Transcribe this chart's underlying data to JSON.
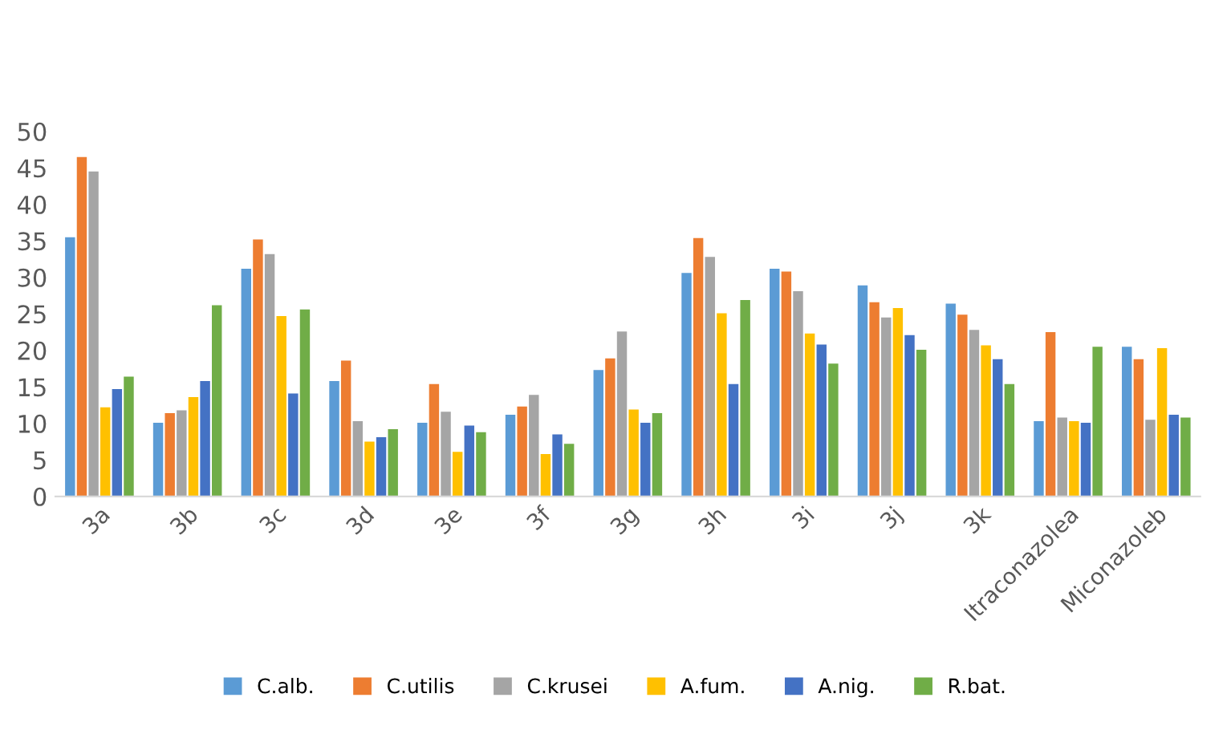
{
  "chart_data": {
    "type": "bar",
    "categories": [
      "3a",
      "3b",
      "3c",
      "3d",
      "3e",
      "3f",
      "3g",
      "3h",
      "3i",
      "3j",
      "3k",
      "Itraconazolea",
      "Miconazoleb"
    ],
    "series": [
      {
        "name": "C.alb.",
        "color": "#5b9bd5",
        "values": [
          35.5,
          10.1,
          31.2,
          15.8,
          10.1,
          11.2,
          17.3,
          30.6,
          31.2,
          28.9,
          26.4,
          10.3,
          20.5
        ]
      },
      {
        "name": "C.utilis",
        "color": "#ed7d31",
        "values": [
          46.5,
          11.4,
          35.2,
          18.6,
          15.4,
          12.3,
          18.9,
          35.4,
          30.8,
          26.6,
          24.9,
          22.5,
          18.8
        ]
      },
      {
        "name": "C.krusei",
        "color": "#a5a5a5",
        "values": [
          44.5,
          11.8,
          33.2,
          10.3,
          11.6,
          13.9,
          22.6,
          32.8,
          28.1,
          24.5,
          22.8,
          10.8,
          10.5
        ]
      },
      {
        "name": "A.fum.",
        "color": "#ffc000",
        "values": [
          12.2,
          13.6,
          24.7,
          7.5,
          6.1,
          5.8,
          11.9,
          25.1,
          22.3,
          25.8,
          20.7,
          10.3,
          20.3
        ]
      },
      {
        "name": "A.nig.",
        "color": "#4472c4",
        "values": [
          14.7,
          15.8,
          14.1,
          8.1,
          9.7,
          8.5,
          10.1,
          15.4,
          20.8,
          22.1,
          18.8,
          10.1,
          11.2
        ]
      },
      {
        "name": "R.bat.",
        "color": "#70ad47",
        "values": [
          16.4,
          26.2,
          25.6,
          9.2,
          8.8,
          7.2,
          11.4,
          26.9,
          18.2,
          20.1,
          15.4,
          20.5,
          10.8
        ]
      }
    ],
    "ylim": [
      0,
      50
    ],
    "yticks": [
      0,
      5,
      10,
      15,
      20,
      25,
      30,
      35,
      40,
      45,
      50
    ],
    "grid": false,
    "legend": "bottom"
  }
}
